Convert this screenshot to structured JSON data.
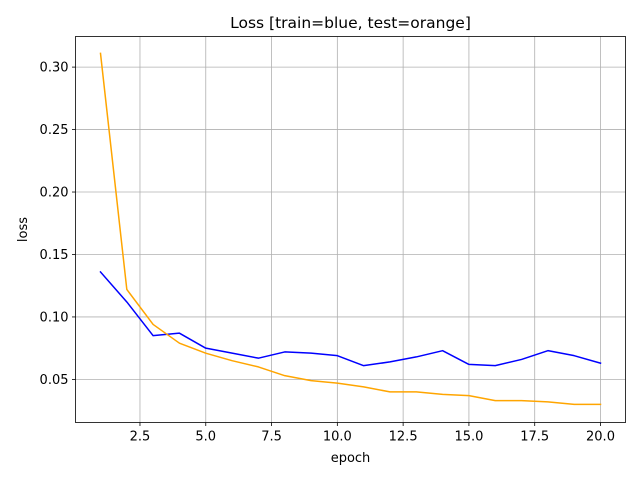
{
  "chart_data": {
    "type": "line",
    "title": "Loss [train=blue, test=orange]",
    "xlabel": "epoch",
    "ylabel": "loss",
    "xlim": [
      0.05,
      20.95
    ],
    "ylim": [
      0.0155,
      0.3245
    ],
    "grid": true,
    "x_ticks": [
      2.5,
      5.0,
      7.5,
      10.0,
      12.5,
      15.0,
      17.5,
      20.0
    ],
    "x_tick_labels": [
      "2.5",
      "5.0",
      "7.5",
      "10.0",
      "12.5",
      "15.0",
      "17.5",
      "20.0"
    ],
    "y_ticks": [
      0.05,
      0.1,
      0.15,
      0.2,
      0.25,
      0.3
    ],
    "y_tick_labels": [
      "0.05",
      "0.10",
      "0.15",
      "0.20",
      "0.25",
      "0.30"
    ],
    "x": [
      1,
      2,
      3,
      4,
      5,
      6,
      7,
      8,
      9,
      10,
      11,
      12,
      13,
      14,
      15,
      16,
      17,
      18,
      19,
      20
    ],
    "series": [
      {
        "key": "train",
        "color": "#0000ff",
        "values": [
          0.136,
          0.112,
          0.085,
          0.087,
          0.075,
          0.071,
          0.067,
          0.072,
          0.071,
          0.069,
          0.061,
          0.064,
          0.068,
          0.073,
          0.062,
          0.061,
          0.066,
          0.073,
          0.069,
          0.063
        ]
      },
      {
        "key": "test",
        "color": "#ffa500",
        "values": [
          0.311,
          0.122,
          0.094,
          0.079,
          0.071,
          0.065,
          0.06,
          0.053,
          0.049,
          0.047,
          0.044,
          0.04,
          0.04,
          0.038,
          0.037,
          0.033,
          0.033,
          0.032,
          0.03,
          0.03
        ]
      }
    ]
  }
}
